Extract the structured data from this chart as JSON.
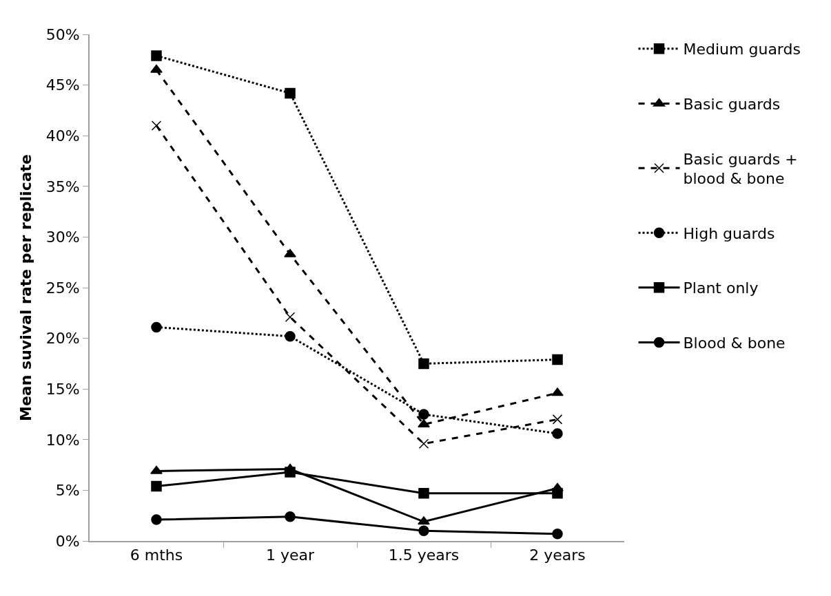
{
  "chart_data": {
    "type": "line",
    "ylabel": "Mean suvival rate per replicate",
    "categories": [
      "6 mths",
      "1 year",
      "1.5 years",
      "2 years"
    ],
    "series": [
      {
        "name": "Medium guards",
        "color": "#000000",
        "values": [
          47.9,
          44.2,
          17.5,
          17.9
        ],
        "marker": "square",
        "line_style": "dotted"
      },
      {
        "name": "Basic guards",
        "color": "#000000",
        "values": [
          46.5,
          28.3,
          11.5,
          14.6
        ],
        "marker": "triangle",
        "line_style": "dashed"
      },
      {
        "name": "Basic guards + blood & bone",
        "color": "#000000",
        "values": [
          41.0,
          22.1,
          9.6,
          12.0
        ],
        "marker": "cross",
        "line_style": "dashed"
      },
      {
        "name": "High guards",
        "color": "#000000",
        "values": [
          21.1,
          20.2,
          12.5,
          10.6
        ],
        "marker": "circle",
        "line_style": "dotted"
      },
      {
        "name": "Plant only",
        "color": "#000000",
        "values": [
          5.4,
          6.8,
          4.7,
          4.7
        ],
        "marker": "square",
        "line_style": "solid"
      },
      {
        "color": "#000000",
        "values": [
          6.9,
          7.1,
          1.9,
          5.2
        ],
        "marker": "triangle",
        "line_style": "solid"
      },
      {
        "name": "Blood & bone",
        "color": "#000000",
        "values": [
          2.1,
          2.4,
          1.0,
          0.7
        ],
        "marker": "circle",
        "line_style": "solid"
      }
    ],
    "ylim": [
      0,
      50
    ],
    "yticks": [
      {
        "value": 0,
        "label": "0%"
      },
      {
        "value": 5,
        "label": "5%"
      },
      {
        "value": 10,
        "label": "10%"
      },
      {
        "value": 15,
        "label": "15%"
      },
      {
        "value": 20,
        "label": "20%"
      },
      {
        "value": 25,
        "label": "25%"
      },
      {
        "value": 30,
        "label": "30%"
      },
      {
        "value": 35,
        "label": "35%"
      },
      {
        "value": 40,
        "label": "40%"
      },
      {
        "value": 45,
        "label": "45%"
      },
      {
        "value": 50,
        "label": "50%"
      }
    ],
    "legend": "right"
  }
}
